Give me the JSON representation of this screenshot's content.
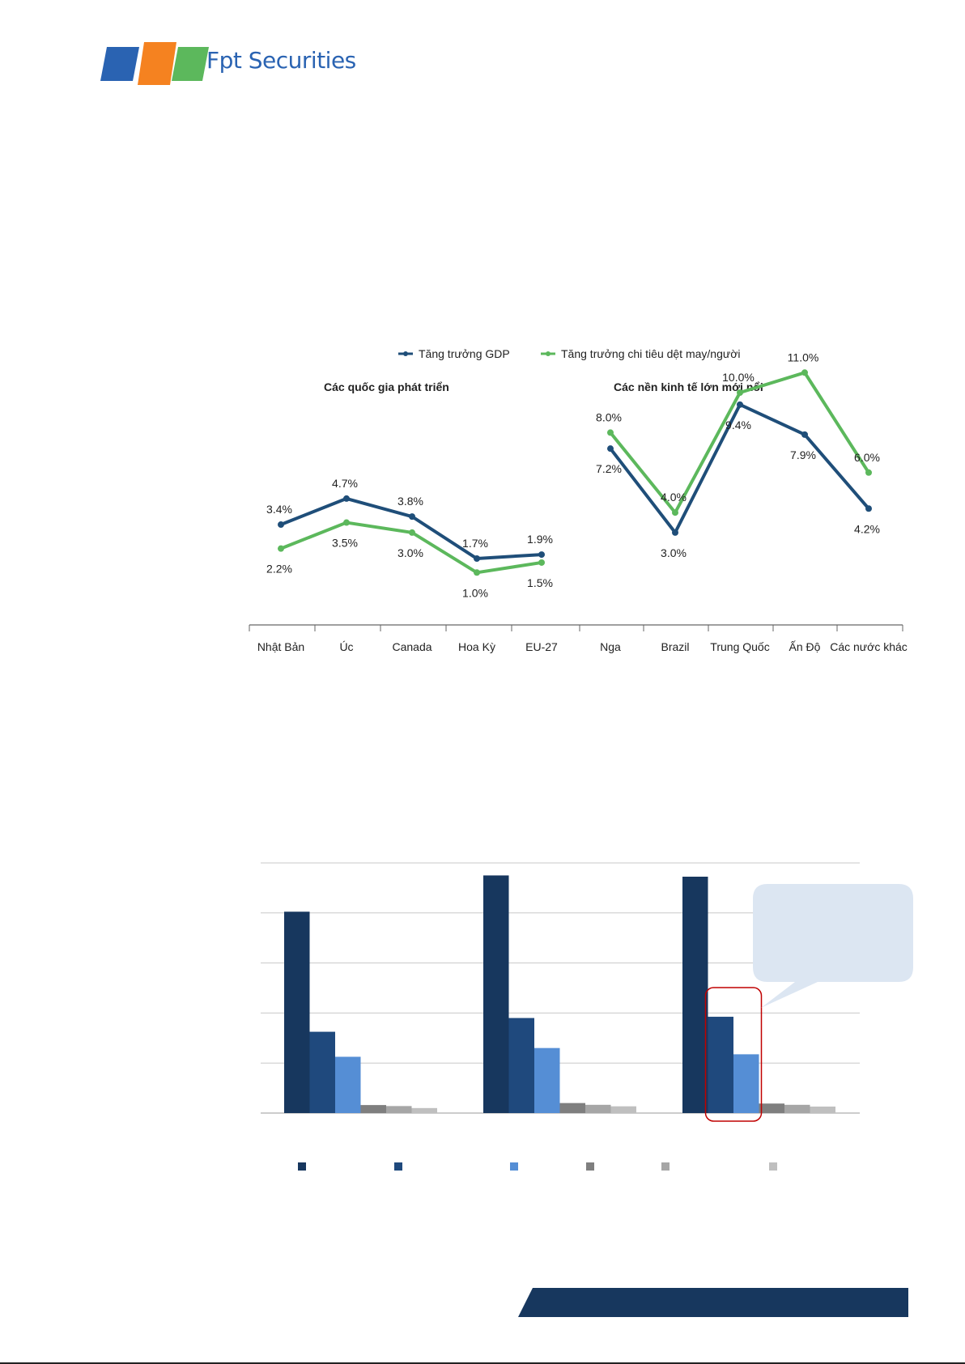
{
  "brand": {
    "name": "Fpt Securities"
  },
  "colors": {
    "gdp": "#1f4e79",
    "textile": "#5cb85c",
    "dark_navy": "#17375e",
    "navy": "#1f497d",
    "blue": "#558ed5",
    "gray1": "#7f7f7f",
    "gray2": "#a6a6a6",
    "gray3": "#bfbfbf"
  },
  "chart_data": [
    {
      "type": "line",
      "legend": [
        "Tăng trưởng GDP",
        "Tăng trưởng chi tiêu dệt may/người"
      ],
      "group_titles": [
        "Các quốc gia phát triển",
        "Các nền kinh tế lớn mới nổi"
      ],
      "categories": [
        "Nhật Bản",
        "Úc",
        "Canada",
        "Hoa Kỳ",
        "EU-27",
        "Nga",
        "Brazil",
        "Trung Quốc",
        "Ấn Độ",
        "Các nước khác"
      ],
      "series": [
        {
          "name": "Tăng trưởng GDP",
          "values": [
            3.4,
            4.7,
            3.8,
            1.7,
            1.9,
            7.2,
            3.0,
            9.4,
            7.9,
            4.2
          ],
          "labels": [
            "3.4%",
            "4.7%",
            "3.8%",
            "1.7%",
            "1.9%",
            "7.2%",
            "3.0%",
            "9.4%",
            "7.9%",
            "4.2%"
          ]
        },
        {
          "name": "Tăng trưởng chi tiêu dệt may/người",
          "values": [
            2.2,
            3.5,
            3.0,
            1.0,
            1.5,
            8.0,
            4.0,
            10.0,
            11.0,
            6.0
          ],
          "labels": [
            "2.2%",
            "3.5%",
            "3.0%",
            "1.0%",
            "1.5%",
            "8.0%",
            "4.0%",
            "10.0%",
            "11.0%",
            "6.0%"
          ]
        }
      ],
      "ylim": [
        0,
        12
      ],
      "legend_position": "top"
    },
    {
      "type": "bar",
      "groups": 3,
      "series_count": 6,
      "values": [
        [
          80.5,
          32.5,
          22.5,
          3.2,
          2.8,
          2.0
        ],
        [
          95.0,
          38.0,
          26.0,
          4.0,
          3.3,
          2.7
        ],
        [
          94.5,
          38.5,
          23.5,
          3.8,
          3.3,
          2.6
        ]
      ],
      "ylim": [
        0,
        100
      ],
      "grid": true,
      "highlight": {
        "group": 2,
        "series": [
          1,
          2
        ]
      },
      "legend_position": "bottom"
    }
  ]
}
